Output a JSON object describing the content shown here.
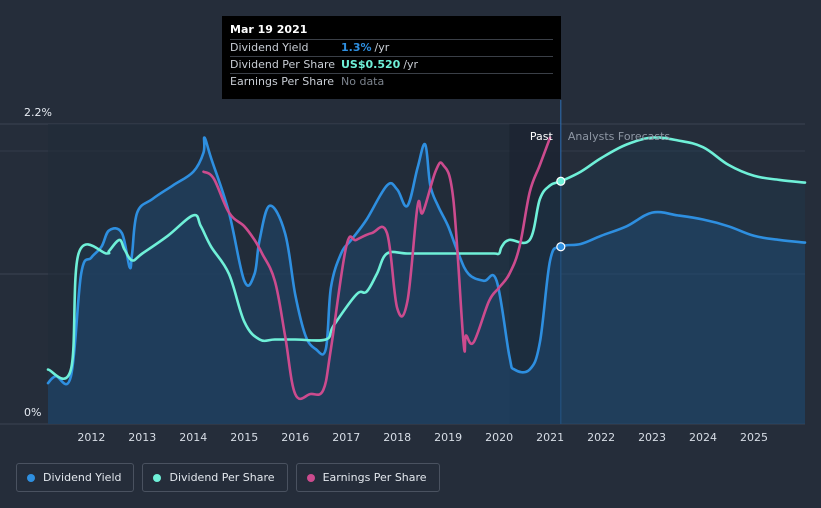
{
  "tooltip": {
    "date": "Mar 19 2021",
    "rows": [
      {
        "label": "Dividend Yield",
        "value": "1.3%",
        "unit": "/yr",
        "color": "#2e8fe0"
      },
      {
        "label": "Dividend Per Share",
        "value": "US$0.520",
        "unit": "/yr",
        "color": "#6ff0d8"
      },
      {
        "label": "Earnings Per Share",
        "value": "No data"
      }
    ]
  },
  "legend": [
    {
      "label": "Dividend Yield",
      "color": "#2e8fe0"
    },
    {
      "label": "Dividend Per Share",
      "color": "#6ff0d8"
    },
    {
      "label": "Earnings Per Share",
      "color": "#cc4b8e"
    }
  ],
  "chart_data": {
    "type": "line",
    "y_tick_labels": [
      "2.2%",
      "0%"
    ],
    "ylim": [
      0,
      2.2
    ],
    "xlim": [
      2011.15,
      2026.0
    ],
    "x_ticks": [
      2012,
      2013,
      2014,
      2015,
      2016,
      2017,
      2018,
      2019,
      2020,
      2021,
      2022,
      2023,
      2024,
      2025
    ],
    "region_labels": {
      "past": "Past",
      "forecast": "Analysts Forecasts"
    },
    "past_shade_start": 2020.2,
    "forecast_start": 2021.21,
    "colors": {
      "yield": "#2e8fe0",
      "dps": "#6ff0d8",
      "eps": "#cc4b8e"
    },
    "series": [
      {
        "name": "Dividend Yield",
        "key": "yield",
        "x": [
          2011.15,
          2011.3,
          2011.6,
          2011.8,
          2012.0,
          2012.2,
          2012.35,
          2012.6,
          2012.75,
          2012.8,
          2012.9,
          2013.2,
          2013.6,
          2014.0,
          2014.2,
          2014.22,
          2014.35,
          2014.7,
          2015.0,
          2015.2,
          2015.3,
          2015.5,
          2015.8,
          2016.0,
          2016.2,
          2016.4,
          2016.6,
          2016.7,
          2016.9,
          2017.1,
          2017.4,
          2017.8,
          2018.0,
          2018.2,
          2018.4,
          2018.55,
          2018.65,
          2018.8,
          2019.0,
          2019.2,
          2019.4,
          2019.7,
          2019.95,
          2020.2,
          2020.3,
          2020.6,
          2020.8,
          2021.0,
          2021.21,
          2021.6,
          2022.0,
          2022.5,
          2023.0,
          2023.5,
          2024.0,
          2024.5,
          2025.0,
          2025.5,
          2026.0
        ],
        "y": [
          0.3,
          0.35,
          0.35,
          1.1,
          1.22,
          1.3,
          1.42,
          1.4,
          1.15,
          1.25,
          1.55,
          1.65,
          1.75,
          1.85,
          1.99,
          2.1,
          1.95,
          1.55,
          1.05,
          1.1,
          1.35,
          1.6,
          1.4,
          0.95,
          0.65,
          0.55,
          0.55,
          1.0,
          1.25,
          1.35,
          1.5,
          1.75,
          1.72,
          1.6,
          1.88,
          2.05,
          1.75,
          1.6,
          1.45,
          1.25,
          1.1,
          1.05,
          1.05,
          0.5,
          0.4,
          0.4,
          0.6,
          1.2,
          1.3,
          1.32,
          1.38,
          1.45,
          1.55,
          1.53,
          1.5,
          1.45,
          1.38,
          1.35,
          1.33
        ]
      },
      {
        "name": "Dividend Per Share",
        "key": "dps",
        "x": [
          2011.15,
          2011.6,
          2011.75,
          2012.3,
          2012.35,
          2012.55,
          2012.65,
          2012.8,
          2013.0,
          2013.5,
          2014.0,
          2014.15,
          2014.35,
          2014.7,
          2015.0,
          2015.3,
          2015.6,
          2016.0,
          2016.6,
          2016.75,
          2017.2,
          2017.4,
          2017.6,
          2017.8,
          2018.2,
          2018.8,
          2019.5,
          2019.9,
          2020.0,
          2020.05,
          2020.2,
          2020.6,
          2020.8,
          2021.0,
          2021.21,
          2021.6,
          2022.0,
          2022.5,
          2023.0,
          2023.5,
          2024.0,
          2024.5,
          2025.0,
          2025.5,
          2026.0
        ],
        "y": [
          0.4,
          0.4,
          1.25,
          1.25,
          1.27,
          1.35,
          1.28,
          1.2,
          1.25,
          1.38,
          1.53,
          1.45,
          1.3,
          1.1,
          0.75,
          0.62,
          0.62,
          0.62,
          0.62,
          0.72,
          0.95,
          0.97,
          1.1,
          1.25,
          1.25,
          1.25,
          1.25,
          1.25,
          1.25,
          1.3,
          1.35,
          1.35,
          1.65,
          1.75,
          1.78,
          1.85,
          1.95,
          2.05,
          2.1,
          2.08,
          2.03,
          1.9,
          1.82,
          1.79,
          1.77
        ]
      },
      {
        "name": "Earnings Per Share",
        "key": "eps",
        "x": [
          2014.2,
          2014.4,
          2014.7,
          2015.0,
          2015.2,
          2015.35,
          2015.6,
          2015.8,
          2016.0,
          2016.3,
          2016.55,
          2016.7,
          2017.0,
          2017.2,
          2017.5,
          2017.8,
          2018.0,
          2018.2,
          2018.4,
          2018.5,
          2018.75,
          2018.9,
          2019.1,
          2019.3,
          2019.35,
          2019.5,
          2019.8,
          2020.0,
          2020.2,
          2020.4,
          2020.6,
          2020.8,
          2021.0
        ],
        "y": [
          1.85,
          1.8,
          1.55,
          1.45,
          1.35,
          1.25,
          1.05,
          0.65,
          0.22,
          0.22,
          0.25,
          0.55,
          1.3,
          1.35,
          1.4,
          1.4,
          0.85,
          0.9,
          1.6,
          1.55,
          1.85,
          1.9,
          1.65,
          0.6,
          0.65,
          0.6,
          0.9,
          1.0,
          1.1,
          1.3,
          1.7,
          1.9,
          2.1
        ]
      }
    ]
  }
}
